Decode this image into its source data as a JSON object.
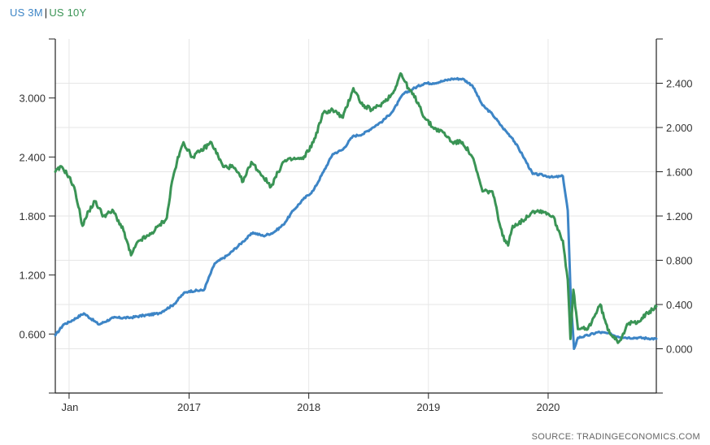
{
  "chart_data": {
    "type": "line",
    "title": "",
    "xlabel": "",
    "ylabel": "",
    "legend_placement": "top-left",
    "grid": true,
    "x_ticks": [
      "Jan",
      "2017",
      "2018",
      "2019",
      "2020"
    ],
    "x_tick_dates": [
      "2016-01-01",
      "2017-01-01",
      "2018-01-01",
      "2019-01-01",
      "2020-01-01"
    ],
    "x_range": [
      "2015-11-20",
      "2020-11-26"
    ],
    "y_left": {
      "ticks": [
        "0.600",
        "1.200",
        "1.800",
        "2.400",
        "3.000"
      ],
      "tick_values": [
        0.6,
        1.2,
        1.8,
        2.4,
        3.0
      ],
      "range": [
        0.0,
        3.6
      ]
    },
    "y_right": {
      "ticks": [
        "0.000",
        "0.400",
        "0.800",
        "1.200",
        "1.600",
        "2.000",
        "2.400"
      ],
      "tick_values": [
        0.0,
        0.4,
        0.8,
        1.2,
        1.6,
        2.0,
        2.4
      ],
      "range": [
        -0.4,
        2.8
      ]
    },
    "series": [
      {
        "name": "US 3M",
        "color": "#3d85c6",
        "axis": "right",
        "x": [
          "2015-11-20",
          "2015-12-15",
          "2016-01-01",
          "2016-02-15",
          "2016-04-01",
          "2016-05-15",
          "2016-07-01",
          "2016-08-15",
          "2016-10-01",
          "2016-11-15",
          "2016-12-15",
          "2017-01-01",
          "2017-02-15",
          "2017-03-20",
          "2017-05-01",
          "2017-06-15",
          "2017-07-15",
          "2017-08-15",
          "2017-09-15",
          "2017-10-15",
          "2017-11-15",
          "2017-12-15",
          "2018-01-15",
          "2018-02-15",
          "2018-03-15",
          "2018-04-15",
          "2018-05-15",
          "2018-06-15",
          "2018-07-15",
          "2018-08-15",
          "2018-09-15",
          "2018-10-15",
          "2018-11-15",
          "2018-12-20",
          "2019-01-15",
          "2019-02-15",
          "2019-03-15",
          "2019-04-15",
          "2019-05-15",
          "2019-06-15",
          "2019-07-15",
          "2019-08-15",
          "2019-09-15",
          "2019-10-15",
          "2019-11-15",
          "2019-12-15",
          "2020-01-15",
          "2020-02-15",
          "2020-03-01",
          "2020-03-10",
          "2020-03-20",
          "2020-04-01",
          "2020-05-01",
          "2020-06-01",
          "2020-07-01",
          "2020-08-01",
          "2020-09-01",
          "2020-10-01",
          "2020-11-26"
        ],
        "y": [
          0.12,
          0.22,
          0.24,
          0.32,
          0.22,
          0.28,
          0.28,
          0.3,
          0.32,
          0.4,
          0.5,
          0.52,
          0.53,
          0.77,
          0.85,
          0.97,
          1.05,
          1.02,
          1.05,
          1.12,
          1.25,
          1.35,
          1.43,
          1.6,
          1.76,
          1.8,
          1.92,
          1.94,
          2.0,
          2.06,
          2.15,
          2.3,
          2.35,
          2.4,
          2.4,
          2.42,
          2.44,
          2.44,
          2.38,
          2.2,
          2.12,
          2.0,
          1.9,
          1.75,
          1.58,
          1.57,
          1.55,
          1.56,
          1.25,
          0.45,
          0.0,
          0.1,
          0.12,
          0.15,
          0.14,
          0.11,
          0.1,
          0.1,
          0.09
        ]
      },
      {
        "name": "US 10Y",
        "color": "#3a9455",
        "axis": "left",
        "x": [
          "2015-11-20",
          "2015-12-10",
          "2016-01-01",
          "2016-01-20",
          "2016-02-11",
          "2016-03-01",
          "2016-03-20",
          "2016-04-15",
          "2016-05-15",
          "2016-06-15",
          "2016-07-08",
          "2016-08-01",
          "2016-09-01",
          "2016-10-01",
          "2016-10-25",
          "2016-11-10",
          "2016-11-25",
          "2016-12-15",
          "2017-01-10",
          "2017-02-01",
          "2017-03-10",
          "2017-04-15",
          "2017-05-15",
          "2017-06-15",
          "2017-07-10",
          "2017-08-15",
          "2017-09-08",
          "2017-10-15",
          "2017-11-15",
          "2017-12-15",
          "2018-01-15",
          "2018-02-15",
          "2018-03-15",
          "2018-04-15",
          "2018-05-17",
          "2018-06-15",
          "2018-07-15",
          "2018-08-15",
          "2018-09-15",
          "2018-10-08",
          "2018-11-01",
          "2018-12-01",
          "2018-12-20",
          "2019-01-15",
          "2019-02-15",
          "2019-03-15",
          "2019-04-15",
          "2019-05-15",
          "2019-06-15",
          "2019-07-15",
          "2019-08-15",
          "2019-09-01",
          "2019-09-15",
          "2019-10-15",
          "2019-11-15",
          "2019-12-15",
          "2020-01-15",
          "2020-02-15",
          "2020-03-01",
          "2020-03-09",
          "2020-03-18",
          "2020-04-01",
          "2020-05-01",
          "2020-06-08",
          "2020-07-01",
          "2020-08-04",
          "2020-09-01",
          "2020-10-01",
          "2020-11-26"
        ],
        "y": [
          2.25,
          2.3,
          2.2,
          2.05,
          1.7,
          1.85,
          1.95,
          1.8,
          1.85,
          1.65,
          1.4,
          1.55,
          1.6,
          1.7,
          1.78,
          2.15,
          2.35,
          2.55,
          2.4,
          2.45,
          2.55,
          2.3,
          2.3,
          2.15,
          2.35,
          2.2,
          2.1,
          2.35,
          2.38,
          2.38,
          2.55,
          2.85,
          2.88,
          2.8,
          3.1,
          2.92,
          2.88,
          2.95,
          3.05,
          3.25,
          3.1,
          2.95,
          2.8,
          2.7,
          2.65,
          2.55,
          2.55,
          2.4,
          2.05,
          2.05,
          1.6,
          1.5,
          1.7,
          1.75,
          1.85,
          1.85,
          1.8,
          1.55,
          1.15,
          0.55,
          1.05,
          0.65,
          0.65,
          0.9,
          0.64,
          0.52,
          0.7,
          0.73,
          0.88
        ]
      }
    ]
  },
  "legend": {
    "series1": "US 3M",
    "sep": "|",
    "series2": "US 10Y"
  },
  "source": "SOURCE: TRADINGECONOMICS.COM"
}
